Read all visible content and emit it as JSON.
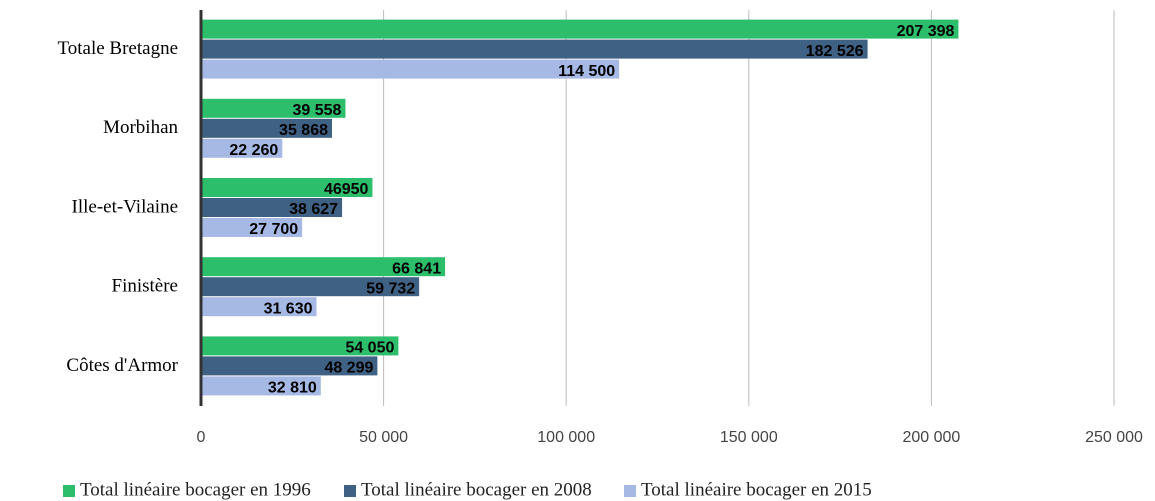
{
  "chart_data": {
    "type": "barh",
    "categories": [
      "Totale Bretagne",
      "Morbihan",
      "Ille-et-Vilaine",
      "Finistère",
      "Côtes d'Armor"
    ],
    "series": [
      {
        "name": "Total linéaire bocager en 1996",
        "color": "#2dbe6c",
        "values": [
          207398,
          39558,
          46950,
          66841,
          54050
        ],
        "value_labels": [
          "207 398",
          "39 558",
          "46950",
          "66 841",
          "54 050"
        ]
      },
      {
        "name": "Total linéaire bocager en 2008",
        "color": "#3f6184",
        "values": [
          182526,
          35868,
          38627,
          59732,
          48299
        ],
        "value_labels": [
          "182 526",
          "35 868",
          "38 627",
          "59 732",
          "48 299"
        ]
      },
      {
        "name": "Total linéaire bocager en 2015",
        "color": "#a6b9e5",
        "values": [
          114500,
          22260,
          27700,
          31630,
          32810
        ],
        "value_labels": [
          "114 500",
          "22 260",
          "27 700",
          "31 630",
          "32 810"
        ]
      }
    ],
    "xlim": [
      0,
      250000
    ],
    "xticks": [
      0,
      {
        "value": 50000,
        "label": "50 000"
      },
      {
        "value": 100000,
        "label": "100 000"
      },
      {
        "value": 150000,
        "label": "150 000"
      },
      {
        "value": 200000,
        "label": "200 000"
      },
      {
        "value": 250000,
        "label": "250 000"
      }
    ],
    "grid": true,
    "legend": "bottom"
  }
}
